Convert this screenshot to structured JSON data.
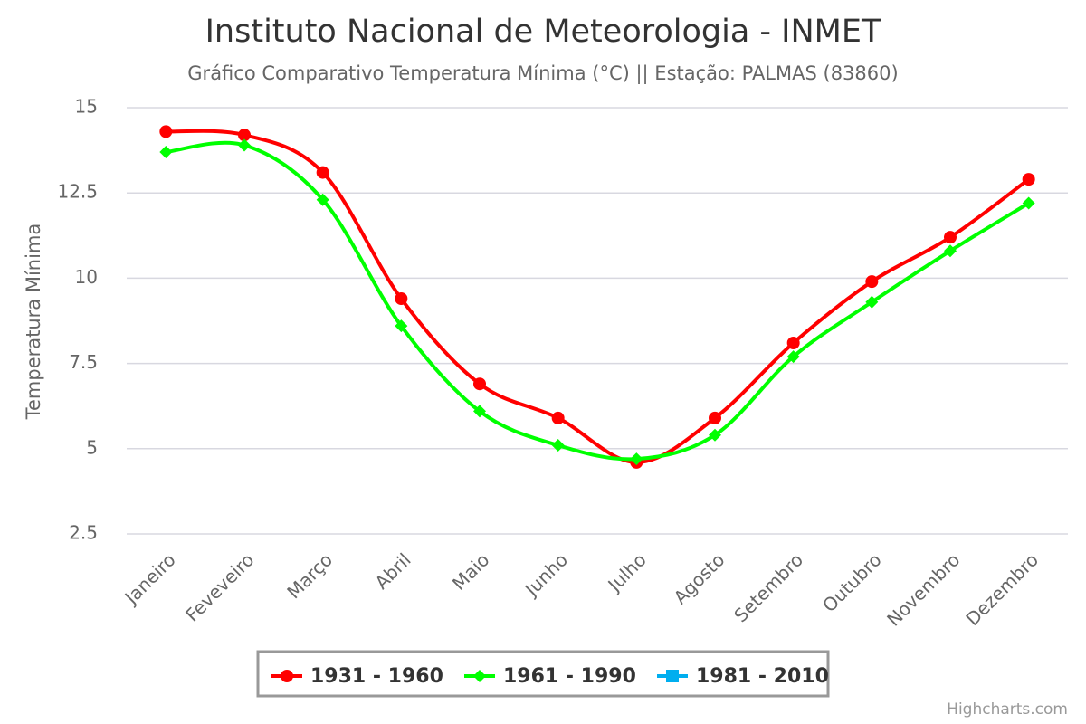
{
  "chart_data": {
    "type": "spline",
    "title": "Instituto Nacional de Meteorologia - INMET",
    "subtitle": "Gráfico Comparativo Temperatura Mínima (°C) || Estação: PALMAS (83860)",
    "y_label": "Temperatura Mínima",
    "categories": [
      "Janeiro",
      "Feveveiro",
      "Março",
      "Abril",
      "Maio",
      "Junho",
      "Julho",
      "Agosto",
      "Setembro",
      "Outubro",
      "Novembro",
      "Dezembro"
    ],
    "series": [
      {
        "name": "1931 - 1960",
        "color": "#ff0000",
        "marker": "circle",
        "values": [
          14.3,
          14.2,
          13.1,
          9.4,
          6.9,
          5.9,
          4.6,
          5.9,
          8.1,
          9.9,
          11.2,
          12.9
        ]
      },
      {
        "name": "1961 - 1990",
        "color": "#00ff00",
        "marker": "diamond",
        "values": [
          13.7,
          13.9,
          12.3,
          8.6,
          6.1,
          5.1,
          4.7,
          5.4,
          7.7,
          9.3,
          10.8,
          12.2
        ]
      },
      {
        "name": "1981 - 2010",
        "color": "#00aeef",
        "marker": "square",
        "values": [
          null,
          null,
          null,
          null,
          null,
          null,
          null,
          null,
          null,
          null,
          null,
          null
        ]
      }
    ],
    "ylim": [
      2.5,
      15
    ],
    "yticks": [
      2.5,
      5,
      7.5,
      10,
      12.5,
      15
    ],
    "grid": true,
    "credits": "Highcharts.com"
  }
}
